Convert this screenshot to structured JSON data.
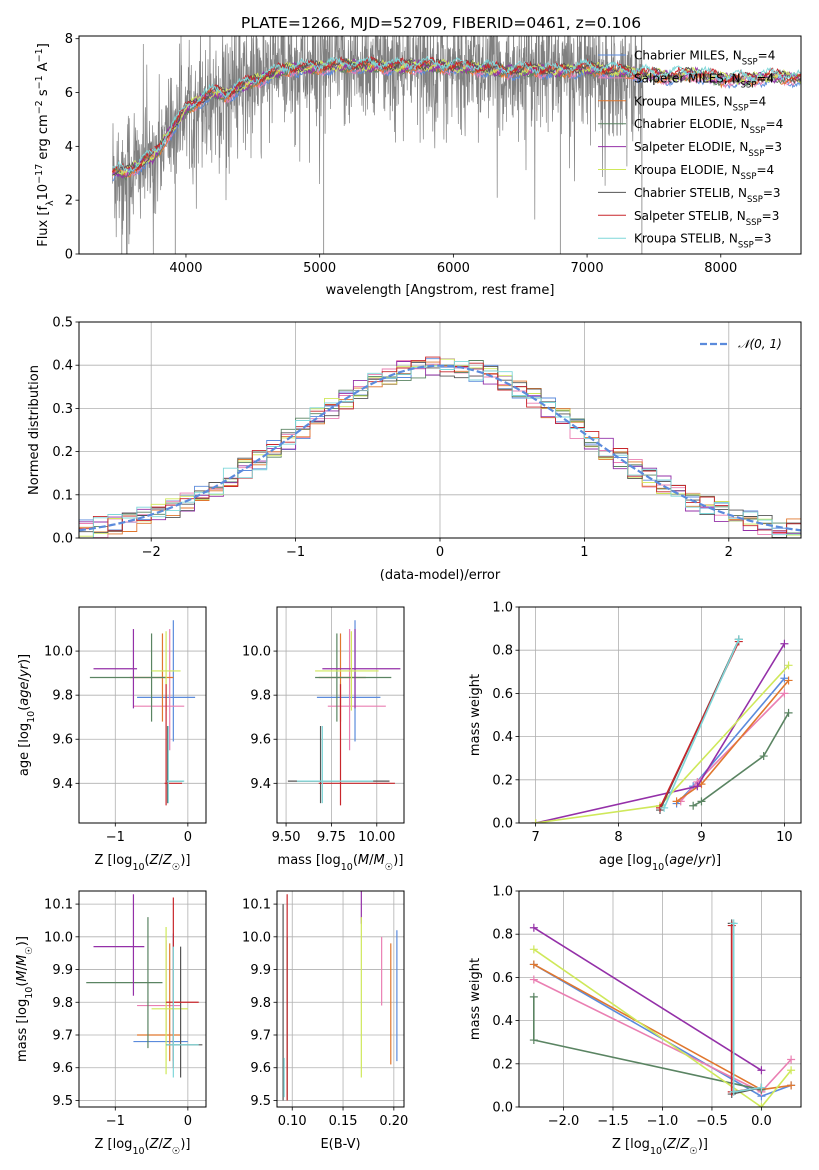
{
  "figure_title": "PLATE=1266, MJD=52709, FIBERID=0461, z=0.106",
  "colors": {
    "Chabrier MILES": "#5b8bdc",
    "Salpeter MILES": "#ea7fb2",
    "Kroupa MILES": "#e0772e",
    "Chabrier ELODIE": "#5a8462",
    "Salpeter ELODIE": "#9430a8",
    "Kroupa ELODIE": "#cfe85a",
    "Chabrier STELIB": "#555555",
    "Salpeter STELIB": "#c8262b",
    "Kroupa STELIB": "#7ed7d9",
    "data": "#808080",
    "normal": "#5b8bdc"
  },
  "chart_data": [
    {
      "id": "spectrum",
      "type": "line",
      "xlabel": "wavelength [Angstrom, rest frame]",
      "ylabel": "Flux [f_λ 10^-17 erg cm^-2 s^-1 A^-1]",
      "ylabel_parts": {
        "a": "Flux [f",
        "sub1": "λ",
        "b": "10",
        "sup1": "−17",
        "c": " erg cm",
        "sup2": "−2",
        "d": " s",
        "sup3": "−1",
        "e": " A",
        "sup4": "−1",
        "f": "]"
      },
      "xlim": [
        3200,
        8600
      ],
      "ylim": [
        0,
        8.1
      ],
      "xticks": [
        4000,
        5000,
        6000,
        7000,
        8000
      ],
      "yticks": [
        0,
        2,
        4,
        6,
        8
      ],
      "model_continuum": {
        "x": [
          3450,
          3500,
          3550,
          3600,
          3650,
          3700,
          3750,
          3800,
          3850,
          3900,
          3950,
          4000,
          4100,
          4200,
          4300,
          4400,
          4500,
          4600,
          4700,
          4800,
          4900,
          5000,
          5200,
          5400,
          5600,
          5800,
          6000,
          6200,
          6400,
          6600,
          6800,
          7000,
          7200,
          7400,
          7600,
          7800,
          8000,
          8200,
          8400,
          8600
        ],
        "y": [
          3.0,
          3.1,
          3.0,
          3.2,
          3.3,
          3.5,
          3.6,
          3.9,
          4.3,
          4.7,
          5.0,
          5.4,
          5.7,
          6.0,
          5.9,
          6.2,
          6.4,
          6.6,
          6.8,
          6.9,
          6.9,
          6.95,
          7.0,
          7.0,
          6.95,
          7.0,
          6.95,
          6.9,
          6.8,
          6.85,
          6.8,
          6.9,
          6.8,
          6.7,
          6.6,
          6.7,
          6.5,
          6.5,
          6.6,
          6.5
        ]
      },
      "legend": [
        {
          "name": "Chabrier MILES",
          "ssp": "4"
        },
        {
          "name": "Salpeter MILES",
          "ssp": "4"
        },
        {
          "name": "Kroupa MILES",
          "ssp": "4"
        },
        {
          "name": "Chabrier ELODIE",
          "ssp": "4"
        },
        {
          "name": "Salpeter ELODIE",
          "ssp": "3"
        },
        {
          "name": "Kroupa ELODIE",
          "ssp": "4"
        },
        {
          "name": "Chabrier STELIB",
          "ssp": "3"
        },
        {
          "name": "Salpeter STELIB",
          "ssp": "3"
        },
        {
          "name": "Kroupa STELIB",
          "ssp": "3"
        }
      ],
      "legend_suffix": ", N",
      "legend_sub": "SSP",
      "legend_eq": "=",
      "legend_position": "right"
    },
    {
      "id": "residuals",
      "type": "histogram",
      "xlabel": "(data-model)/error",
      "ylabel": "Normed distribution",
      "xlim": [
        -2.5,
        2.5
      ],
      "ylim": [
        0,
        0.5
      ],
      "xticks": [
        -2,
        -1,
        0,
        1,
        2
      ],
      "yticks": [
        0.0,
        0.1,
        0.2,
        0.3,
        0.4,
        0.5
      ],
      "bin_width": 0.1,
      "grid": true,
      "normal_label": "𝒩(0, 1)",
      "legend_position": "top-right"
    },
    {
      "id": "age_vs_Z",
      "type": "errorbar",
      "xlabel_main": "Z [log",
      "xlabel_sub": "10",
      "xlabel_rest": "(Z/Z",
      "xlabel_sun": "☉",
      "xlabel_end": ")]",
      "ylabel_main": "age  [log",
      "ylabel_sub": "10",
      "ylabel_rest": "(age/yr)]",
      "xlim": [
        -1.5,
        0.25
      ],
      "ylim": [
        9.22,
        10.2
      ],
      "xticks": [
        -1,
        0
      ],
      "xticklabels": [
        "−1",
        "0"
      ],
      "yticks": [
        9.4,
        9.6,
        9.8,
        10.0
      ],
      "yticklabels": [
        "9.4",
        "9.6",
        "9.8",
        "10.0"
      ],
      "points": [
        {
          "model": "Chabrier MILES",
          "x": -0.2,
          "xerr": [
            0.5,
            0.3
          ],
          "y": 9.79,
          "yerr": [
            0.2,
            0.35
          ]
        },
        {
          "model": "Salpeter MILES",
          "x": -0.25,
          "xerr": [
            0.5,
            0.2
          ],
          "y": 9.75,
          "yerr": [
            0.2,
            0.35
          ]
        },
        {
          "model": "Kroupa MILES",
          "x": -0.35,
          "xerr": [
            0.45,
            0.15
          ],
          "y": 9.88,
          "yerr": [
            0.2,
            0.2
          ]
        },
        {
          "model": "Chabrier ELODIE",
          "x": -0.5,
          "xerr": [
            0.85,
            0.2
          ],
          "y": 9.88,
          "yerr": [
            0.2,
            0.2
          ]
        },
        {
          "model": "Salpeter ELODIE",
          "x": -0.75,
          "xerr": [
            0.55,
            0.05
          ],
          "y": 9.92,
          "yerr": [
            0.18,
            0.18
          ]
        },
        {
          "model": "Kroupa ELODIE",
          "x": -0.3,
          "xerr": [
            0.2,
            0.2
          ],
          "y": 9.91,
          "yerr": [
            0.18,
            0.18
          ]
        },
        {
          "model": "Chabrier STELIB",
          "x": -0.28,
          "xerr": [
            0.02,
            0.22
          ],
          "y": 9.41,
          "yerr": [
            0.1,
            0.25
          ]
        },
        {
          "model": "Salpeter STELIB",
          "x": -0.3,
          "xerr": [
            0.02,
            0.22
          ],
          "y": 9.4,
          "yerr": [
            0.1,
            0.45
          ]
        },
        {
          "model": "Kroupa STELIB",
          "x": -0.27,
          "xerr": [
            0.02,
            0.22
          ],
          "y": 9.41,
          "yerr": [
            0.1,
            0.25
          ]
        }
      ]
    },
    {
      "id": "age_vs_mass",
      "type": "errorbar",
      "xlabel_main": "mass [log",
      "xlabel_sub": "10",
      "xlabel_rest": "(M/M",
      "xlabel_sun": "☉",
      "xlabel_end": ")]",
      "xlim": [
        9.45,
        10.15
      ],
      "ylim": [
        9.22,
        10.2
      ],
      "xticks": [
        9.5,
        9.75,
        10.0
      ],
      "xticklabels": [
        "9.50",
        "9.75",
        "10.00"
      ],
      "yticks": [
        9.4,
        9.6,
        9.8,
        10.0
      ],
      "yticklabels": [
        "9.4",
        "9.6",
        "9.8",
        "10.0"
      ],
      "points": [
        {
          "model": "Chabrier MILES",
          "x": 9.88,
          "xerr": [
            0.21,
            0.14
          ],
          "y": 9.79,
          "yerr": [
            0.2,
            0.35
          ]
        },
        {
          "model": "Salpeter MILES",
          "x": 9.85,
          "xerr": [
            0.12,
            0.2
          ],
          "y": 9.75,
          "yerr": [
            0.2,
            0.35
          ]
        },
        {
          "model": "Kroupa MILES",
          "x": 9.8,
          "xerr": [
            0.12,
            0.14
          ],
          "y": 9.88,
          "yerr": [
            0.2,
            0.2
          ]
        },
        {
          "model": "Chabrier ELODIE",
          "x": 9.78,
          "xerr": [
            0.12,
            0.3
          ],
          "y": 9.88,
          "yerr": [
            0.2,
            0.2
          ]
        },
        {
          "model": "Salpeter ELODIE",
          "x": 9.88,
          "xerr": [
            0.18,
            0.25
          ],
          "y": 9.92,
          "yerr": [
            0.18,
            0.18
          ]
        },
        {
          "model": "Kroupa ELODIE",
          "x": 9.86,
          "xerr": [
            0.2,
            0.15
          ],
          "y": 9.91,
          "yerr": [
            0.18,
            0.18
          ]
        },
        {
          "model": "Chabrier STELIB",
          "x": 9.69,
          "xerr": [
            0.18,
            0.38
          ],
          "y": 9.41,
          "yerr": [
            0.1,
            0.25
          ]
        },
        {
          "model": "Salpeter STELIB",
          "x": 9.8,
          "xerr": [
            0.12,
            0.3
          ],
          "y": 9.4,
          "yerr": [
            0.1,
            0.45
          ]
        },
        {
          "model": "Kroupa STELIB",
          "x": 9.7,
          "xerr": [
            0.14,
            0.28
          ],
          "y": 9.41,
          "yerr": [
            0.1,
            0.25
          ]
        }
      ]
    },
    {
      "id": "massweight_vs_age",
      "type": "line",
      "xlabel_main": "age  [log",
      "xlabel_sub": "10",
      "xlabel_rest": "(age/yr)]",
      "ylabel": "mass weight",
      "xlim": [
        6.8,
        10.2
      ],
      "ylim": [
        0,
        1.0
      ],
      "xticks": [
        7,
        8,
        9,
        10
      ],
      "xticklabels": [
        "7",
        "8",
        "9",
        "10"
      ],
      "yticks": [
        0,
        0.2,
        0.4,
        0.6,
        0.8,
        1.0
      ],
      "yticklabels": [
        "0.0",
        "0.2",
        "0.4",
        "0.6",
        "0.8",
        "1.0"
      ],
      "series": [
        {
          "name": "Chabrier MILES",
          "x": [
            8.7,
            8.9,
            10.0
          ],
          "y": [
            0.09,
            0.17,
            0.67
          ]
        },
        {
          "name": "Salpeter MILES",
          "x": [
            8.75,
            8.95,
            10.0
          ],
          "y": [
            0.1,
            0.19,
            0.6
          ]
        },
        {
          "name": "Kroupa MILES",
          "x": [
            8.7,
            9.0,
            10.05
          ],
          "y": [
            0.1,
            0.18,
            0.66
          ]
        },
        {
          "name": "Chabrier ELODIE",
          "x": [
            8.9,
            9.0,
            9.75,
            10.05
          ],
          "y": [
            0.08,
            0.1,
            0.31,
            0.51
          ]
        },
        {
          "name": "Salpeter ELODIE",
          "x": [
            7.0,
            8.95,
            10.0
          ],
          "y": [
            0.0,
            0.17,
            0.83
          ]
        },
        {
          "name": "Kroupa ELODIE",
          "x": [
            7.0,
            8.5,
            10.05
          ],
          "y": [
            0.0,
            0.08,
            0.73
          ]
        },
        {
          "name": "Chabrier STELIB",
          "x": [
            8.5,
            9.45
          ],
          "y": [
            0.06,
            0.85
          ]
        },
        {
          "name": "Salpeter STELIB",
          "x": [
            8.5,
            9.45
          ],
          "y": [
            0.07,
            0.84
          ]
        },
        {
          "name": "Kroupa STELIB",
          "x": [
            8.55,
            9.45
          ],
          "y": [
            0.07,
            0.85
          ]
        }
      ]
    },
    {
      "id": "mass_vs_Z",
      "type": "errorbar",
      "xlabel_main": "Z [log",
      "xlabel_sub": "10",
      "xlabel_rest": "(Z/Z",
      "xlabel_sun": "☉",
      "xlabel_end": ")]",
      "ylabel_main": "mass [log",
      "ylabel_sub": "10",
      "ylabel_rest": "(M/M",
      "ylabel_sun": "☉",
      "ylabel_end": ")]",
      "xlim": [
        -1.5,
        0.25
      ],
      "ylim": [
        9.48,
        10.14
      ],
      "xticks": [
        -1,
        0
      ],
      "xticklabels": [
        "−1",
        "0"
      ],
      "yticks": [
        9.5,
        9.6,
        9.7,
        9.8,
        9.9,
        10.0,
        10.1
      ],
      "yticklabels": [
        "9.5",
        "9.6",
        "9.7",
        "9.8",
        "9.9",
        "10.0",
        "10.1"
      ],
      "points": [
        {
          "model": "Chabrier MILES",
          "x": -0.2,
          "xerr": [
            0.55,
            0.2
          ],
          "y": 9.68,
          "yerr": [
            0.06,
            0.33
          ]
        },
        {
          "model": "Salpeter MILES",
          "x": -0.3,
          "xerr": [
            0.4,
            0.2
          ],
          "y": 9.79,
          "yerr": [
            0.08,
            0.2
          ]
        },
        {
          "model": "Kroupa MILES",
          "x": -0.25,
          "xerr": [
            0.45,
            0.15
          ],
          "y": 9.7,
          "yerr": [
            0.08,
            0.28
          ]
        },
        {
          "model": "Chabrier ELODIE",
          "x": -0.55,
          "xerr": [
            0.85,
            0.2
          ],
          "y": 9.86,
          "yerr": [
            0.2,
            0.2
          ]
        },
        {
          "model": "Salpeter ELODIE",
          "x": -0.75,
          "xerr": [
            0.55,
            0.15
          ],
          "y": 9.97,
          "yerr": [
            0.15,
            0.16
          ]
        },
        {
          "model": "Kroupa ELODIE",
          "x": -0.3,
          "xerr": [
            0.2,
            0.3
          ],
          "y": 9.78,
          "yerr": [
            0.2,
            0.25
          ]
        },
        {
          "model": "Chabrier STELIB",
          "x": -0.1,
          "xerr": [
            0.2,
            0.3
          ],
          "y": 9.67,
          "yerr": [
            0.1,
            0.3
          ]
        },
        {
          "model": "Salpeter STELIB",
          "x": -0.2,
          "xerr": [
            0.1,
            0.35
          ],
          "y": 9.8,
          "yerr": [
            0.2,
            0.32
          ]
        },
        {
          "model": "Kroupa STELIB",
          "x": -0.2,
          "xerr": [
            0.1,
            0.35
          ],
          "y": 9.67,
          "yerr": [
            0.1,
            0.3
          ]
        }
      ]
    },
    {
      "id": "mass_vs_ebv",
      "type": "errorbar",
      "xlabel": "E(B-V)",
      "xlim": [
        0.085,
        0.21
      ],
      "ylim": [
        9.48,
        10.14
      ],
      "xticks": [
        0.1,
        0.15,
        0.2
      ],
      "xticklabels": [
        "0.10",
        "0.15",
        "0.20"
      ],
      "yticks": [
        9.5,
        9.6,
        9.7,
        9.8,
        9.9,
        10.0,
        10.1
      ],
      "yticklabels": [
        "9.5",
        "9.6",
        "9.7",
        "9.8",
        "9.9",
        "10.0",
        "10.1"
      ],
      "points": [
        {
          "model": "Chabrier MILES",
          "x": 0.203,
          "y": 9.82,
          "yerr": [
            0.2,
            0.2
          ]
        },
        {
          "model": "Salpeter MILES",
          "x": 0.188,
          "y": 9.85,
          "yerr": [
            0.06,
            0.15
          ]
        },
        {
          "model": "Kroupa MILES",
          "x": 0.197,
          "y": 9.8,
          "yerr": [
            0.19,
            0.18
          ]
        },
        {
          "model": "Chabrier ELODIE",
          "x": 0.095,
          "y": 9.8,
          "yerr": [
            0.3,
            0.2
          ]
        },
        {
          "model": "Salpeter ELODIE",
          "x": 0.168,
          "y": 10.09,
          "yerr": [
            0.05,
            0.05
          ]
        },
        {
          "model": "Kroupa ELODIE",
          "x": 0.168,
          "y": 9.82,
          "yerr": [
            0.25,
            0.24
          ]
        },
        {
          "model": "Chabrier STELIB",
          "x": 0.091,
          "y": 9.8,
          "yerr": [
            0.3,
            0.3
          ]
        },
        {
          "model": "Salpeter STELIB",
          "x": 0.095,
          "y": 9.8,
          "yerr": [
            0.3,
            0.33
          ]
        },
        {
          "model": "Kroupa STELIB",
          "x": 0.092,
          "y": 9.55,
          "yerr": [
            0.04,
            0.08
          ]
        }
      ]
    },
    {
      "id": "massweight_vs_Z",
      "type": "line",
      "xlabel_main": "Z [log",
      "xlabel_sub": "10",
      "xlabel_rest": "(Z/Z",
      "xlabel_sun": "☉",
      "xlabel_end": ")]",
      "ylabel": "mass weight",
      "xlim": [
        -2.45,
        0.4
      ],
      "ylim": [
        0,
        1.0
      ],
      "xticks": [
        -2.0,
        -1.5,
        -1.0,
        -0.5,
        0.0
      ],
      "xticklabels": [
        "−2.0",
        "−1.5",
        "−1.0",
        "−0.5",
        "0.0"
      ],
      "yticks": [
        0,
        0.2,
        0.4,
        0.6,
        0.8,
        1.0
      ],
      "yticklabels": [
        "0.0",
        "0.2",
        "0.4",
        "0.6",
        "0.8",
        "1.0"
      ],
      "series": [
        {
          "name": "Chabrier MILES",
          "x": [
            -2.3,
            0.0,
            0.3
          ],
          "y": [
            0.66,
            0.05,
            0.1
          ]
        },
        {
          "name": "Salpeter MILES",
          "x": [
            -2.3,
            0.0,
            0.3
          ],
          "y": [
            0.59,
            0.07,
            0.22
          ]
        },
        {
          "name": "Kroupa MILES",
          "x": [
            -2.3,
            0.0,
            0.3
          ],
          "y": [
            0.66,
            0.08,
            0.1
          ]
        },
        {
          "name": "Chabrier ELODIE",
          "x": [
            -2.3,
            -2.3,
            0.0
          ],
          "y": [
            0.51,
            0.31,
            0.08
          ]
        },
        {
          "name": "Salpeter ELODIE",
          "x": [
            -2.3,
            0.0
          ],
          "y": [
            0.83,
            0.17
          ]
        },
        {
          "name": "Kroupa ELODIE",
          "x": [
            -2.3,
            0.0,
            0.3
          ],
          "y": [
            0.73,
            0.0,
            0.17
          ]
        },
        {
          "name": "Chabrier STELIB",
          "x": [
            -0.3,
            -0.3,
            0.0
          ],
          "y": [
            0.85,
            0.06,
            0.09
          ]
        },
        {
          "name": "Salpeter STELIB",
          "x": [
            -0.3,
            -0.3,
            0.0
          ],
          "y": [
            0.84,
            0.07,
            0.09
          ]
        },
        {
          "name": "Kroupa STELIB",
          "x": [
            -0.28,
            -0.28,
            0.0
          ],
          "y": [
            0.85,
            0.07,
            0.09
          ]
        }
      ]
    }
  ]
}
